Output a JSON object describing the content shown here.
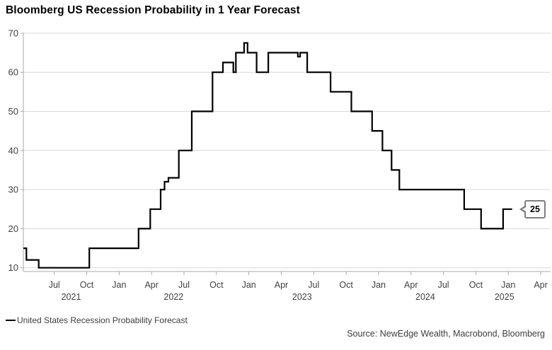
{
  "title": "Bloomberg US Recession Probability in 1 Year Forecast",
  "legend": {
    "label": "United States Recession Probability Forecast",
    "swatch_color": "#000000"
  },
  "source": "Source: NewEdge Wealth, Macrobond, Bloomberg",
  "callout": {
    "value": "25"
  },
  "chart_data": {
    "type": "line",
    "step_mode": "after",
    "series_name": "United States Recession Probability Forecast",
    "title": "Bloomberg US Recession Probability in 1 Year Forecast",
    "xlabel": "",
    "ylabel": "",
    "grid": "horizontal",
    "legend_position": "bottom-left",
    "latest_value": 25,
    "line_color": "#000000",
    "grid_color": "#d9d9d9",
    "axis_color": "#a9a9a9",
    "tick_label_color": "#3f3f3f",
    "ylim": [
      9,
      70
    ],
    "y_ticks": [
      10,
      20,
      30,
      40,
      50,
      60,
      70
    ],
    "x_ticks": [
      {
        "label": "Jul",
        "t": 2021.5
      },
      {
        "label": "Oct",
        "t": 2021.75
      },
      {
        "label": "Jan",
        "t": 2022.0
      },
      {
        "label": "Apr",
        "t": 2022.25
      },
      {
        "label": "Jul",
        "t": 2022.5
      },
      {
        "label": "Oct",
        "t": 2022.75
      },
      {
        "label": "Jan",
        "t": 2023.0
      },
      {
        "label": "Apr",
        "t": 2023.25
      },
      {
        "label": "Jul",
        "t": 2023.5
      },
      {
        "label": "Oct",
        "t": 2023.75
      },
      {
        "label": "Jan",
        "t": 2024.0
      },
      {
        "label": "Apr",
        "t": 2024.25
      },
      {
        "label": "Jul",
        "t": 2024.5
      },
      {
        "label": "Oct",
        "t": 2024.75
      },
      {
        "label": "Jan",
        "t": 2025.0
      },
      {
        "label": "Apr",
        "t": 2025.25
      }
    ],
    "year_labels": [
      {
        "label": "2021",
        "t": 2021.63
      },
      {
        "label": "2022",
        "t": 2022.42
      },
      {
        "label": "2023",
        "t": 2023.41
      },
      {
        "label": "2024",
        "t": 2024.36
      },
      {
        "label": "2025",
        "t": 2024.97
      }
    ],
    "steps": [
      [
        2021.262,
        15
      ],
      [
        2021.285,
        12
      ],
      [
        2021.38,
        10
      ],
      [
        2021.77,
        15
      ],
      [
        2022.15,
        20
      ],
      [
        2022.24,
        25
      ],
      [
        2022.32,
        30
      ],
      [
        2022.35,
        32
      ],
      [
        2022.38,
        33
      ],
      [
        2022.46,
        40
      ],
      [
        2022.56,
        50
      ],
      [
        2022.72,
        60
      ],
      [
        2022.8,
        62.5
      ],
      [
        2022.88,
        60
      ],
      [
        2022.9,
        65
      ],
      [
        2022.963,
        67.5
      ],
      [
        2022.99,
        65
      ],
      [
        2023.06,
        60
      ],
      [
        2023.15,
        65
      ],
      [
        2023.378,
        64
      ],
      [
        2023.395,
        65
      ],
      [
        2023.45,
        60
      ],
      [
        2023.63,
        55
      ],
      [
        2023.79,
        50
      ],
      [
        2023.95,
        45
      ],
      [
        2024.03,
        40
      ],
      [
        2024.1,
        35
      ],
      [
        2024.16,
        30
      ],
      [
        2024.66,
        25
      ],
      [
        2024.79,
        20
      ],
      [
        2024.96,
        25
      ]
    ],
    "end_t": 2025.03
  }
}
